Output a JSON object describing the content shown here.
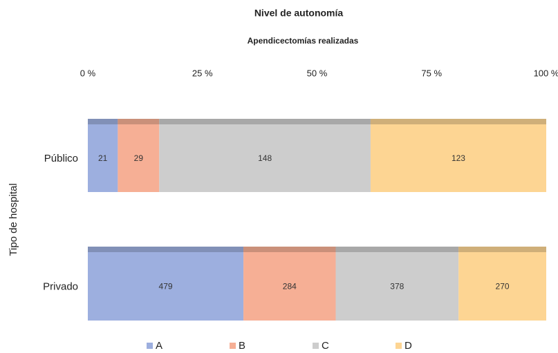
{
  "chart_data": {
    "type": "bar",
    "orientation": "horizontal",
    "stacked": "percent",
    "title": "Nivel de autonomía",
    "subtitle": "Apendicectomías realizadas",
    "y_label": "Tipo de hospital",
    "categories": [
      "Público",
      "Privado"
    ],
    "series": [
      {
        "name": "A",
        "color": "#9dafdf",
        "values": [
          21,
          479
        ]
      },
      {
        "name": "B",
        "color": "#f6af95",
        "values": [
          29,
          284
        ]
      },
      {
        "name": "C",
        "color": "#cdcdcd",
        "values": [
          148,
          378
        ]
      },
      {
        "name": "D",
        "color": "#fdd593",
        "values": [
          123,
          270
        ]
      }
    ],
    "xlim": [
      0,
      100
    ],
    "xticks": [
      {
        "value": 0,
        "label": "0 %"
      },
      {
        "value": 25,
        "label": "25 %"
      },
      {
        "value": 50,
        "label": "50 %"
      },
      {
        "value": 75,
        "label": "75 %"
      },
      {
        "value": 100,
        "label": "100 %"
      }
    ],
    "legend": "bottom"
  }
}
